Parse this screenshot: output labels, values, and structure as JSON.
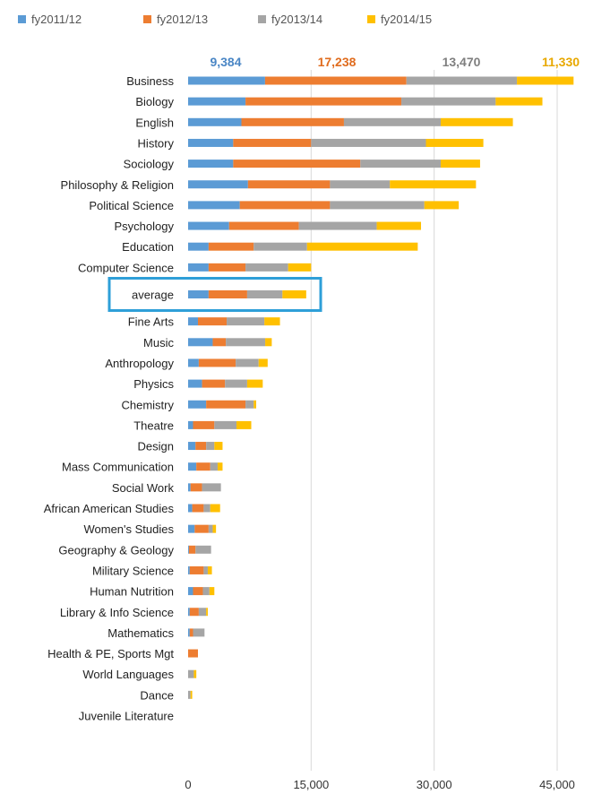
{
  "chart_data": {
    "type": "bar",
    "orientation": "horizontal",
    "stacked": true,
    "xlim": [
      0,
      45000
    ],
    "xticks": [
      "0",
      "15,000",
      "30,000",
      "45,000"
    ],
    "xtick_values": [
      0,
      15000,
      30000,
      45000
    ],
    "grid": true,
    "legend_position": "top-left",
    "highlighted_category": "average",
    "series_totals": [
      "9,384",
      "17,238",
      "13,470",
      "11,330"
    ],
    "series": [
      {
        "name": "fy2011/12",
        "color": "#5b9bd5"
      },
      {
        "name": "fy2012/13",
        "color": "#ed7d31"
      },
      {
        "name": "fy2013/14",
        "color": "#a5a5a5"
      },
      {
        "name": "fy2014/15",
        "color": "#ffc000"
      }
    ],
    "categories": [
      "Business",
      "Biology",
      "English",
      "History",
      "Sociology",
      "Philosophy & Religion",
      "Political Science",
      "Psychology",
      "Education",
      "Computer Science",
      "average",
      "Fine Arts",
      "Music",
      "Anthropology",
      "Physics",
      "Chemistry",
      "Theatre",
      "Design",
      "Mass Communication",
      "Social Work",
      "African American Studies",
      "Women's Studies",
      "Geography & Geology",
      "Military Science",
      "Human Nutrition",
      "Library & Info Science",
      "Mathematics",
      "Health & PE, Sports Mgt",
      "World Languages",
      "Dance",
      "Juvenile Literature"
    ],
    "values": [
      [
        9384,
        17238,
        13470,
        11330
      ],
      [
        7000,
        19000,
        11500,
        5700
      ],
      [
        6500,
        12500,
        11800,
        8800
      ],
      [
        5500,
        9500,
        14000,
        7000
      ],
      [
        5500,
        15500,
        9800,
        4800
      ],
      [
        7300,
        10000,
        7300,
        10500
      ],
      [
        6300,
        11000,
        11500,
        4200
      ],
      [
        5000,
        8500,
        9500,
        5400
      ],
      [
        2500,
        5500,
        6500,
        13500
      ],
      [
        2500,
        4500,
        5200,
        2800
      ],
      [
        2500,
        4700,
        4300,
        2900
      ],
      [
        1200,
        3500,
        4600,
        1900
      ],
      [
        3000,
        1600,
        4800,
        800
      ],
      [
        1300,
        4500,
        2800,
        1100
      ],
      [
        1700,
        2800,
        2700,
        1900
      ],
      [
        2200,
        4800,
        1000,
        300
      ],
      [
        600,
        2600,
        2700,
        1800
      ],
      [
        900,
        1300,
        1000,
        1000
      ],
      [
        1000,
        1700,
        900,
        600
      ],
      [
        300,
        1400,
        2300,
        0
      ],
      [
        500,
        1400,
        800,
        1200
      ],
      [
        800,
        1700,
        500,
        400
      ],
      [
        100,
        800,
        1900,
        0
      ],
      [
        200,
        1700,
        500,
        500
      ],
      [
        600,
        1200,
        800,
        600
      ],
      [
        200,
        1100,
        900,
        200
      ],
      [
        200,
        400,
        1400,
        0
      ],
      [
        0,
        1200,
        0,
        0
      ],
      [
        0,
        0,
        700,
        300
      ],
      [
        0,
        0,
        300,
        200
      ],
      [
        0,
        0,
        0,
        0
      ]
    ]
  }
}
